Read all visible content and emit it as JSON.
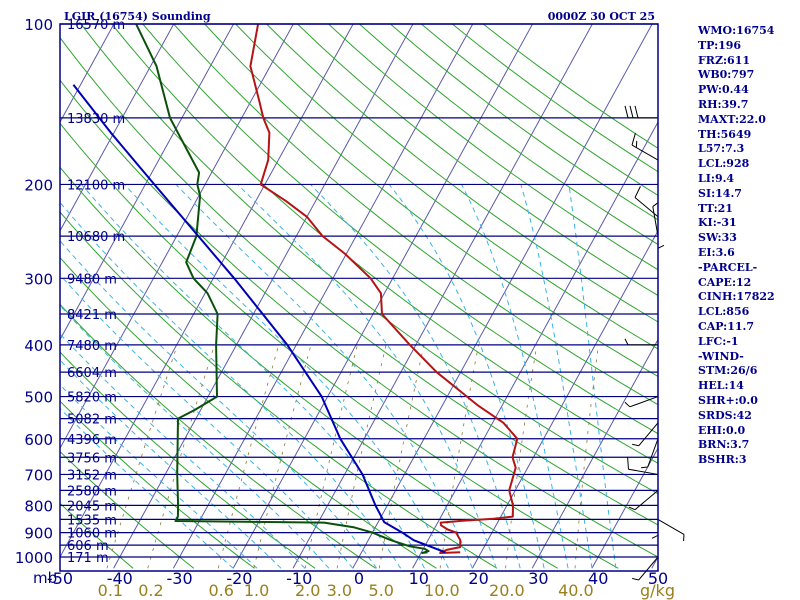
{
  "title_left": "LGIR (16754) Sounding",
  "title_right": "0000Z 30 OCT 25",
  "corner_label": "mb",
  "units_label": "g/kg",
  "colors": {
    "frame": "#00008b",
    "isobar": "#000080",
    "dry_adiabat": "#2fa52f",
    "moist_adiabat": "#3cb4e6",
    "mixing_ratio": "#8a7a3a",
    "temperature": "#b41414",
    "dewpoint": "#0a500a",
    "parcel": "#0000b4",
    "wind": "#000000"
  },
  "sidebar": [
    "WMO:16754",
    "TP:196",
    "FRZ:611",
    "WB0:797",
    "PW:0.44",
    "RH:39.7",
    "MAXT:22.0",
    "TH:5649",
    "L57:7.3",
    "LCL:928",
    "LI:9.4",
    "SI:14.7",
    "TT:21",
    "KI:-31",
    "SW:33",
    "EI:3.6",
    "-PARCEL-",
    "CAPE:12",
    "CINH:17822",
    "LCL:856",
    "CAP:11.7",
    "LFC:-1",
    "-WIND-",
    "STM:26/6",
    "HEL:14",
    "SHR+:0.0",
    "SRDS:42",
    "EHI:0.0",
    "BRN:3.7",
    "BSHR:3"
  ],
  "chart_data": {
    "type": "line",
    "chart_kind": "skew-T log-P sounding",
    "y_axis": {
      "scale": "log",
      "ylim": [
        1000,
        100
      ],
      "tick_labels": [
        "100",
        "200",
        "300",
        "400",
        "500",
        "600",
        "700",
        "800",
        "900",
        "1000"
      ]
    },
    "x_axis": {
      "xlim": [
        -50,
        50
      ],
      "tick_labels": [
        "-50",
        "-40",
        "-30",
        "-20",
        "-10",
        "0",
        "10",
        "20",
        "30",
        "40",
        "50"
      ]
    },
    "mixing_ratio_labels": [
      "0.1",
      "0.2",
      "0.6",
      "1.0",
      "2.0",
      "3.0",
      "5.0",
      "10.0",
      "20.0",
      "40.0"
    ],
    "mixing_ratio_values": [
      0.1,
      0.2,
      0.6,
      1.0,
      2.0,
      3.0,
      5.0,
      10.0,
      20.0,
      40.0
    ],
    "height_labels": [
      {
        "p": 100,
        "label": "16570 m"
      },
      {
        "p": 150,
        "label": "13830 m"
      },
      {
        "p": 200,
        "label": "12100 m"
      },
      {
        "p": 250,
        "label": "10680 m"
      },
      {
        "p": 300,
        "label": "9480 m"
      },
      {
        "p": 350,
        "label": "8421 m"
      },
      {
        "p": 400,
        "label": "7480 m"
      },
      {
        "p": 450,
        "label": "6604 m"
      },
      {
        "p": 500,
        "label": "5820 m"
      },
      {
        "p": 550,
        "label": "5082 m"
      },
      {
        "p": 600,
        "label": "4396 m"
      },
      {
        "p": 650,
        "label": "3756 m"
      },
      {
        "p": 700,
        "label": "3152 m"
      },
      {
        "p": 750,
        "label": "2580 m"
      },
      {
        "p": 800,
        "label": "2045 m"
      },
      {
        "p": 850,
        "label": "1535 m"
      },
      {
        "p": 900,
        "label": "1060 m"
      },
      {
        "p": 950,
        "label": "606 m"
      },
      {
        "p": 1000,
        "label": "171 m"
      }
    ],
    "series": [
      {
        "role": "temperature",
        "points": [
          [
            980,
            16.5
          ],
          [
            983,
            13.2
          ],
          [
            970,
            14.0
          ],
          [
            958,
            16.0
          ],
          [
            930,
            15.4
          ],
          [
            900,
            14.0
          ],
          [
            888,
            12.3
          ],
          [
            872,
            10.8
          ],
          [
            862,
            10.5
          ],
          [
            855,
            14.0
          ],
          [
            848,
            19.0
          ],
          [
            840,
            22.0
          ],
          [
            800,
            21.0
          ],
          [
            750,
            19.0
          ],
          [
            680,
            18.0
          ],
          [
            650,
            16.5
          ],
          [
            600,
            15.6
          ],
          [
            560,
            11.8
          ],
          [
            520,
            6.0
          ],
          [
            500,
            3.3
          ],
          [
            450,
            -4.0
          ],
          [
            400,
            -11.0
          ],
          [
            350,
            -18.5
          ],
          [
            320,
            -20.6
          ],
          [
            300,
            -23.7
          ],
          [
            270,
            -30.2
          ],
          [
            250,
            -35.6
          ],
          [
            230,
            -40.0
          ],
          [
            215,
            -44.9
          ],
          [
            200,
            -50.7
          ],
          [
            180,
            -51.7
          ],
          [
            160,
            -54.0
          ],
          [
            150,
            -56.4
          ],
          [
            140,
            -58.5
          ],
          [
            120,
            -63.3
          ],
          [
            100,
            -65.9
          ]
        ]
      },
      {
        "role": "dewpoint",
        "points": [
          [
            980,
            11.0
          ],
          [
            983,
            10.2
          ],
          [
            975,
            11.1
          ],
          [
            965,
            10.2
          ],
          [
            955,
            7.5
          ],
          [
            930,
            3.8
          ],
          [
            900,
            0.0
          ],
          [
            880,
            -3.5
          ],
          [
            862,
            -9.0
          ],
          [
            856,
            -34.0
          ],
          [
            840,
            -34.0
          ],
          [
            800,
            -35.0
          ],
          [
            700,
            -38.0
          ],
          [
            550,
            -43.0
          ],
          [
            530,
            -41.0
          ],
          [
            500,
            -38.5
          ],
          [
            400,
            -43.4
          ],
          [
            350,
            -46.0
          ],
          [
            320,
            -49.6
          ],
          [
            300,
            -53.3
          ],
          [
            280,
            -56.0
          ],
          [
            250,
            -56.7
          ],
          [
            210,
            -59.8
          ],
          [
            200,
            -61.3
          ],
          [
            190,
            -62.1
          ],
          [
            150,
            -72.0
          ],
          [
            120,
            -79.0
          ],
          [
            100,
            -86.3
          ]
        ]
      },
      {
        "role": "parcel",
        "points": [
          [
            980,
            14.0
          ],
          [
            930,
            7.6
          ],
          [
            900,
            5.0
          ],
          [
            860,
            1.0
          ],
          [
            800,
            -2.0
          ],
          [
            700,
            -7.0
          ],
          [
            600,
            -14.0
          ],
          [
            500,
            -21.0
          ],
          [
            400,
            -31.5
          ],
          [
            300,
            -46.5
          ],
          [
            200,
            -68.5
          ],
          [
            160,
            -80.5
          ],
          [
            130,
            -91.2
          ]
        ]
      }
    ],
    "winds": [
      {
        "p": 150,
        "dir": 270,
        "speed": 30
      },
      {
        "p": 180,
        "dir": 300,
        "speed": 15
      },
      {
        "p": 230,
        "dir": 310,
        "speed": 10
      },
      {
        "p": 250,
        "dir": 350,
        "speed": 5
      },
      {
        "p": 300,
        "dir": 360,
        "speed": 5
      },
      {
        "p": 400,
        "dir": 270,
        "speed": 5
      },
      {
        "p": 500,
        "dir": 250,
        "speed": 5
      },
      {
        "p": 560,
        "dir": 220,
        "speed": 5
      },
      {
        "p": 600,
        "dir": 200,
        "speed": 5
      },
      {
        "p": 700,
        "dir": 280,
        "speed": 10
      },
      {
        "p": 750,
        "dir": 230,
        "speed": 5
      },
      {
        "p": 800,
        "dir": 180,
        "speed": 5
      },
      {
        "p": 850,
        "dir": 120,
        "speed": 5
      },
      {
        "p": 1000,
        "dir": 220,
        "speed": 5
      }
    ]
  }
}
